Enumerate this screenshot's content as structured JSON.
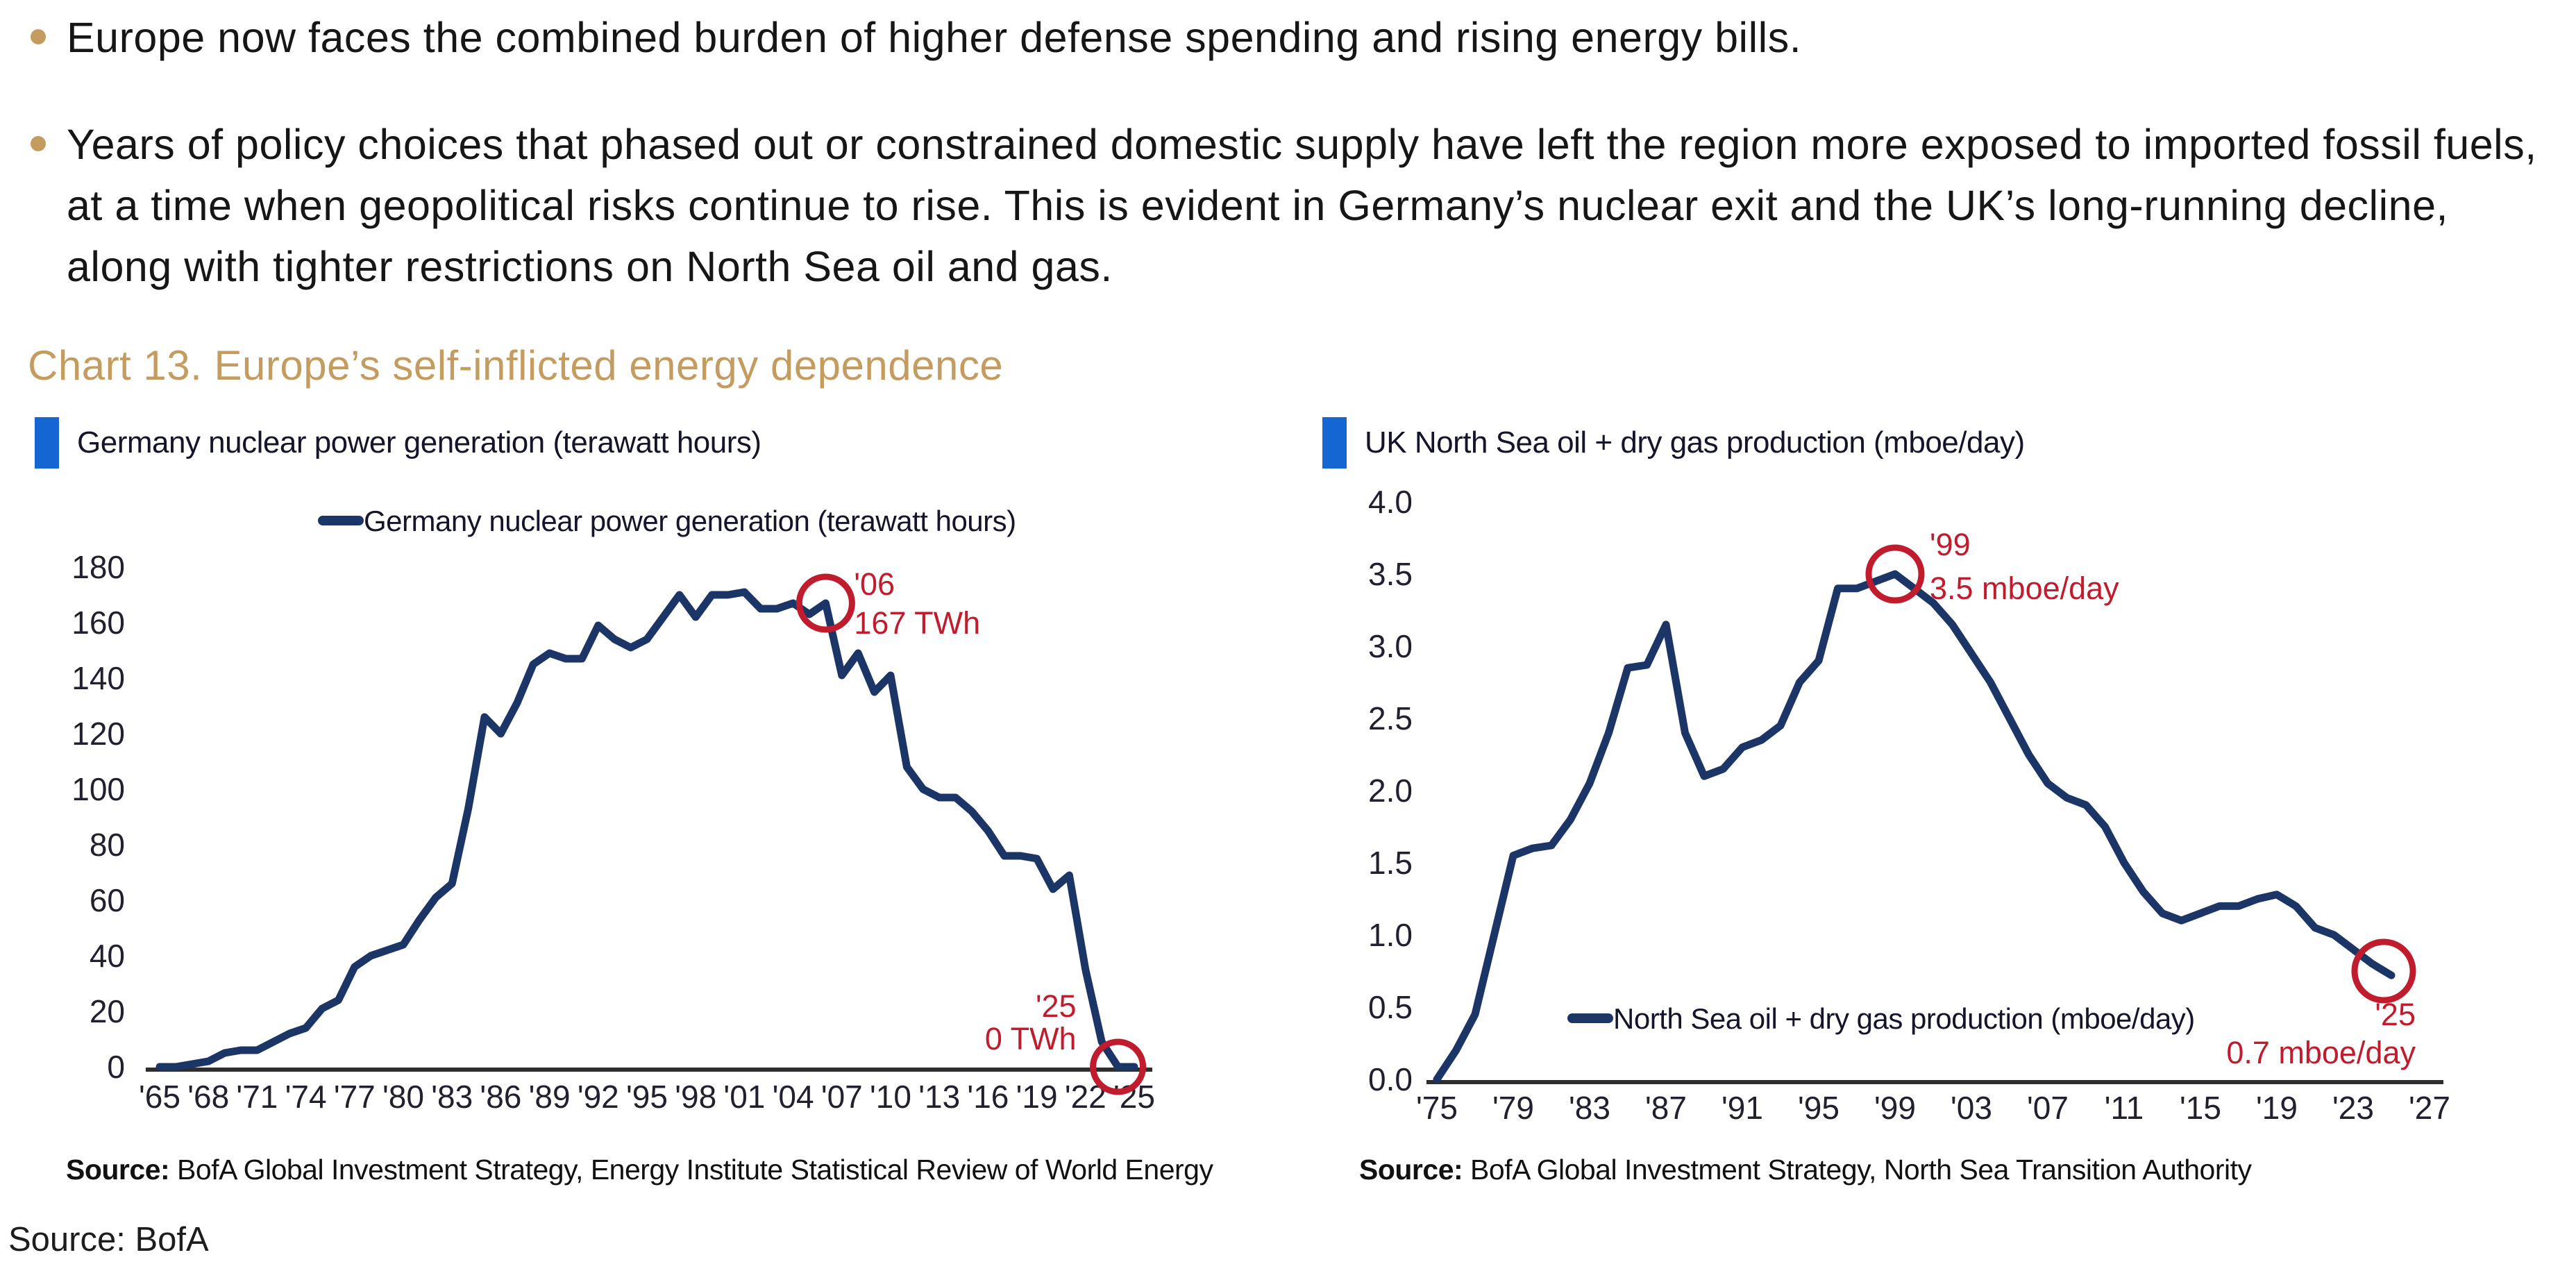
{
  "page": {
    "bullets": [
      "Europe now faces the combined burden of higher defense spending and rising energy bills.",
      "Years of policy choices that phased out or constrained domestic supply have left the region more exposed to imported fossil fuels, at a time when geopolitical risks continue to rise. This is evident in Germany’s nuclear exit and the UK’s long-running decline, along with tighter restrictions on North Sea oil and gas."
    ],
    "chart_section_title": "Chart 13. Europe’s self-inflicted energy dependence",
    "footer_source": "Source: BofA"
  },
  "colors": {
    "accent_gold": "#c49c60",
    "navy_line": "#1b3566",
    "annotation_red": "#c11b2e",
    "header_blue": "#1565d2",
    "axis_line": "#2e2e2e",
    "tick_text": "#20202e",
    "legend_text": "#14142a"
  },
  "chart_data": [
    {
      "type": "line",
      "title": "Germany nuclear power generation (terawatt hours)",
      "legend": "Germany nuclear power generation (terawatt hours)",
      "source_label": "Source:",
      "source_text": " BofA Global Investment Strategy, Energy Institute Statistical Review of World Energy",
      "year_start": 1965,
      "values": [
        0,
        0,
        1,
        2,
        5,
        6,
        6,
        9,
        12,
        14,
        21,
        24,
        36,
        40,
        42,
        44,
        53,
        61,
        66,
        93,
        126,
        120,
        131,
        145,
        149,
        147,
        147,
        159,
        154,
        151,
        154,
        162,
        170,
        162,
        170,
        170,
        171,
        165,
        165,
        167,
        163,
        167,
        141,
        149,
        135,
        141,
        108,
        100,
        97,
        97,
        92,
        85,
        76,
        76,
        75,
        64,
        69,
        35,
        9,
        0,
        0
      ],
      "ylim": [
        0,
        190
      ],
      "xlim": [
        1965,
        2025
      ],
      "grid": false,
      "legend_position": "top-center-inside",
      "x_ticks": [
        "'65",
        "'68",
        "'71",
        "'74",
        "'77",
        "'80",
        "'83",
        "'86",
        "'89",
        "'92",
        "'95",
        "'98",
        "'01",
        "'04",
        "'07",
        "'10",
        "'13",
        "'16",
        "'19",
        "'22",
        "'25"
      ],
      "x_tick_years": [
        1965,
        1968,
        1971,
        1974,
        1977,
        1980,
        1983,
        1986,
        1989,
        1992,
        1995,
        1998,
        2001,
        2004,
        2007,
        2010,
        2013,
        2016,
        2019,
        2022,
        2025
      ],
      "y_ticks": [
        0,
        20,
        40,
        60,
        80,
        100,
        120,
        140,
        160,
        180
      ],
      "y_tick_labels": [
        "0",
        "20",
        "40",
        "60",
        "80",
        "100",
        "120",
        "140",
        "160",
        "180"
      ],
      "annotations": [
        {
          "year": 2006,
          "value": 167,
          "lines": [
            "'06",
            "167 TWh"
          ]
        },
        {
          "year": 2024,
          "value": 0,
          "lines": [
            "'25",
            "0 TWh"
          ]
        }
      ]
    },
    {
      "type": "line",
      "title": "UK North Sea oil + dry gas production (mboe/day)",
      "legend": "North Sea oil + dry gas production (mboe/day)",
      "source_label": "Source:",
      "source_text": " BofA Global Investment Strategy, North Sea Transition Authority",
      "year_start": 1975,
      "values": [
        0,
        0.2,
        0.45,
        1.0,
        1.55,
        1.6,
        1.62,
        1.8,
        2.05,
        2.4,
        2.85,
        2.87,
        3.15,
        2.4,
        2.1,
        2.15,
        2.3,
        2.35,
        2.45,
        2.75,
        2.9,
        3.4,
        3.4,
        3.45,
        3.5,
        3.4,
        3.3,
        3.15,
        2.95,
        2.75,
        2.5,
        2.25,
        2.05,
        1.95,
        1.9,
        1.75,
        1.5,
        1.3,
        1.15,
        1.1,
        1.15,
        1.2,
        1.2,
        1.25,
        1.28,
        1.2,
        1.05,
        1.0,
        0.9,
        0.8,
        0.72
      ],
      "ylim": [
        0.0,
        4.0
      ],
      "xlim": [
        1975,
        2027
      ],
      "grid": false,
      "legend_position": "bottom-center-inside",
      "x_ticks": [
        "'75",
        "'79",
        "'83",
        "'87",
        "'91",
        "'95",
        "'99",
        "'03",
        "'07",
        "'11",
        "'15",
        "'19",
        "'23",
        "'27"
      ],
      "x_tick_years": [
        1975,
        1979,
        1983,
        1987,
        1991,
        1995,
        1999,
        2003,
        2007,
        2011,
        2015,
        2019,
        2023,
        2027
      ],
      "y_ticks": [
        0.0,
        0.5,
        1.0,
        1.5,
        2.0,
        2.5,
        3.0,
        3.5,
        4.0
      ],
      "y_tick_labels": [
        "0.0",
        "0.5",
        "1.0",
        "1.5",
        "2.0",
        "2.5",
        "3.0",
        "3.5",
        "4.0"
      ],
      "annotations": [
        {
          "year": 1999,
          "value": 3.5,
          "lines": [
            "'99",
            "3.5 mboe/day"
          ]
        },
        {
          "year": 2024.6,
          "value": 0.75,
          "lines": [
            "'25",
            "0.7 mboe/day"
          ]
        }
      ]
    }
  ]
}
